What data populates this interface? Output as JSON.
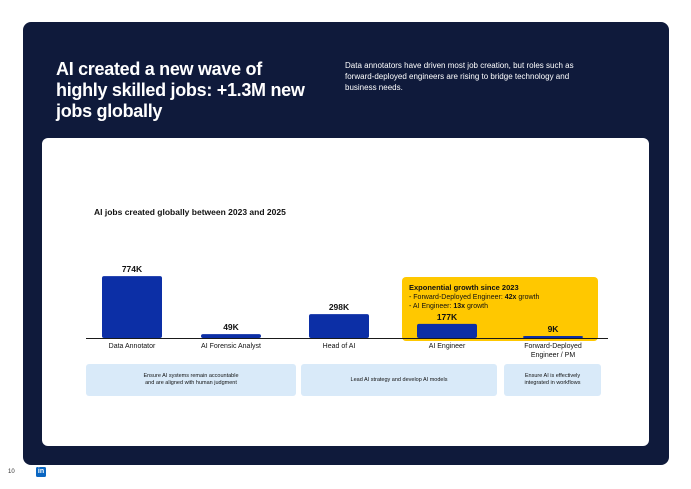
{
  "headline": "AI created a new wave of highly skilled jobs: +1.3M new jobs globally",
  "subtext": "Data annotators have driven most job creation, but roles such as forward-deployed engineers are rising to bridge technology and business needs.",
  "chart_data": {
    "type": "bar",
    "title": "AI jobs created globally between 2023 and 2025",
    "categories": [
      "Data Annotator",
      "AI Forensic Analyst",
      "Head of AI",
      "AI Engineer",
      "Forward-Deployed Engineer / PM"
    ],
    "values": [
      774,
      49,
      298,
      177,
      9
    ],
    "value_labels": [
      "774K",
      "49K",
      "298K",
      "177K",
      "9K"
    ],
    "unit": "K",
    "ylim": [
      0,
      800
    ],
    "grid": false,
    "colors": {
      "bar": "#0c2fa6",
      "axis": "#1a1a1a",
      "callout": "#ffc800"
    }
  },
  "callout": {
    "title": "Exponential growth since 2023",
    "line1_prefix": "- Forward-Deployed Engineer: ",
    "line1_value": "42x",
    "line1_suffix": " growth",
    "line2_prefix": "- AI Engineer: ",
    "line2_value": "13x",
    "line2_suffix": " growth"
  },
  "descriptions": [
    {
      "line1": "Ensure AI systems remain accountable",
      "line2": "and are aligned with human judgment"
    },
    {
      "line1": "Lead AI strategy and develop AI models",
      "line2": ""
    },
    {
      "line1": "Ensure AI is effectively",
      "line2": "integrated in workflows"
    }
  ],
  "footer": {
    "page_number": "10",
    "logo_text": "in"
  }
}
